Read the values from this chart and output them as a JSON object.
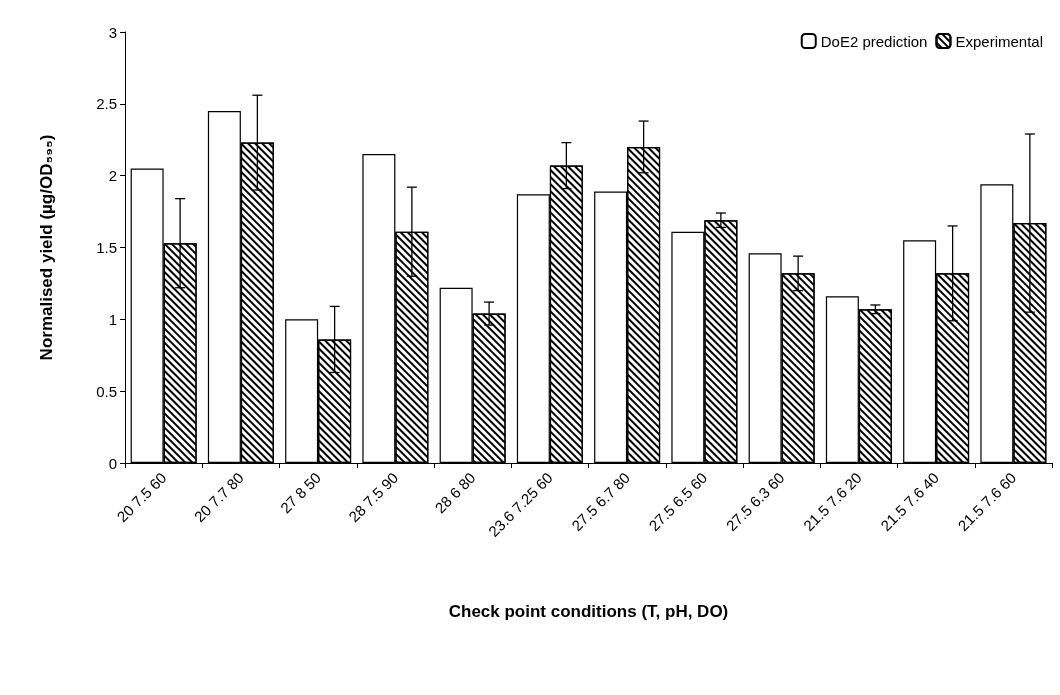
{
  "chart_data": {
    "type": "bar",
    "xlabel": "Check point conditions (T, pH, DO)",
    "ylabel": "Normalised yield (µg/OD₅₉₅)",
    "categories": [
      "20 7.5 60",
      "20 7.7 80",
      "27 8 50",
      "28 7.5 90",
      "28 6 80",
      "23.6 7.25 60",
      "27.5 6.7 80",
      "27.5 6.5 60",
      "27.5 6.3 60",
      "21.5 7.6 20",
      "21.5 7.6 40",
      "21.5 7.6 60"
    ],
    "series": [
      {
        "name": "DoE2 prediction",
        "color": "#ffffff",
        "values": [
          2.05,
          2.45,
          1.0,
          2.15,
          1.22,
          1.87,
          1.89,
          1.61,
          1.46,
          1.16,
          1.55,
          1.94
        ]
      },
      {
        "name": "Experimental",
        "color": "#ffffff",
        "values": [
          1.53,
          2.23,
          0.86,
          1.61,
          1.04,
          2.07,
          2.2,
          1.69,
          1.32,
          1.07,
          1.32,
          1.67
        ],
        "errors": [
          0.31,
          0.33,
          0.23,
          0.31,
          0.08,
          0.16,
          0.18,
          0.05,
          0.12,
          0.03,
          0.33,
          0.62
        ]
      }
    ],
    "ylim": [
      0,
      3
    ],
    "yticks": [
      0,
      0.5,
      1,
      1.5,
      2,
      2.5,
      3
    ],
    "grid": false,
    "legend": "top right"
  }
}
